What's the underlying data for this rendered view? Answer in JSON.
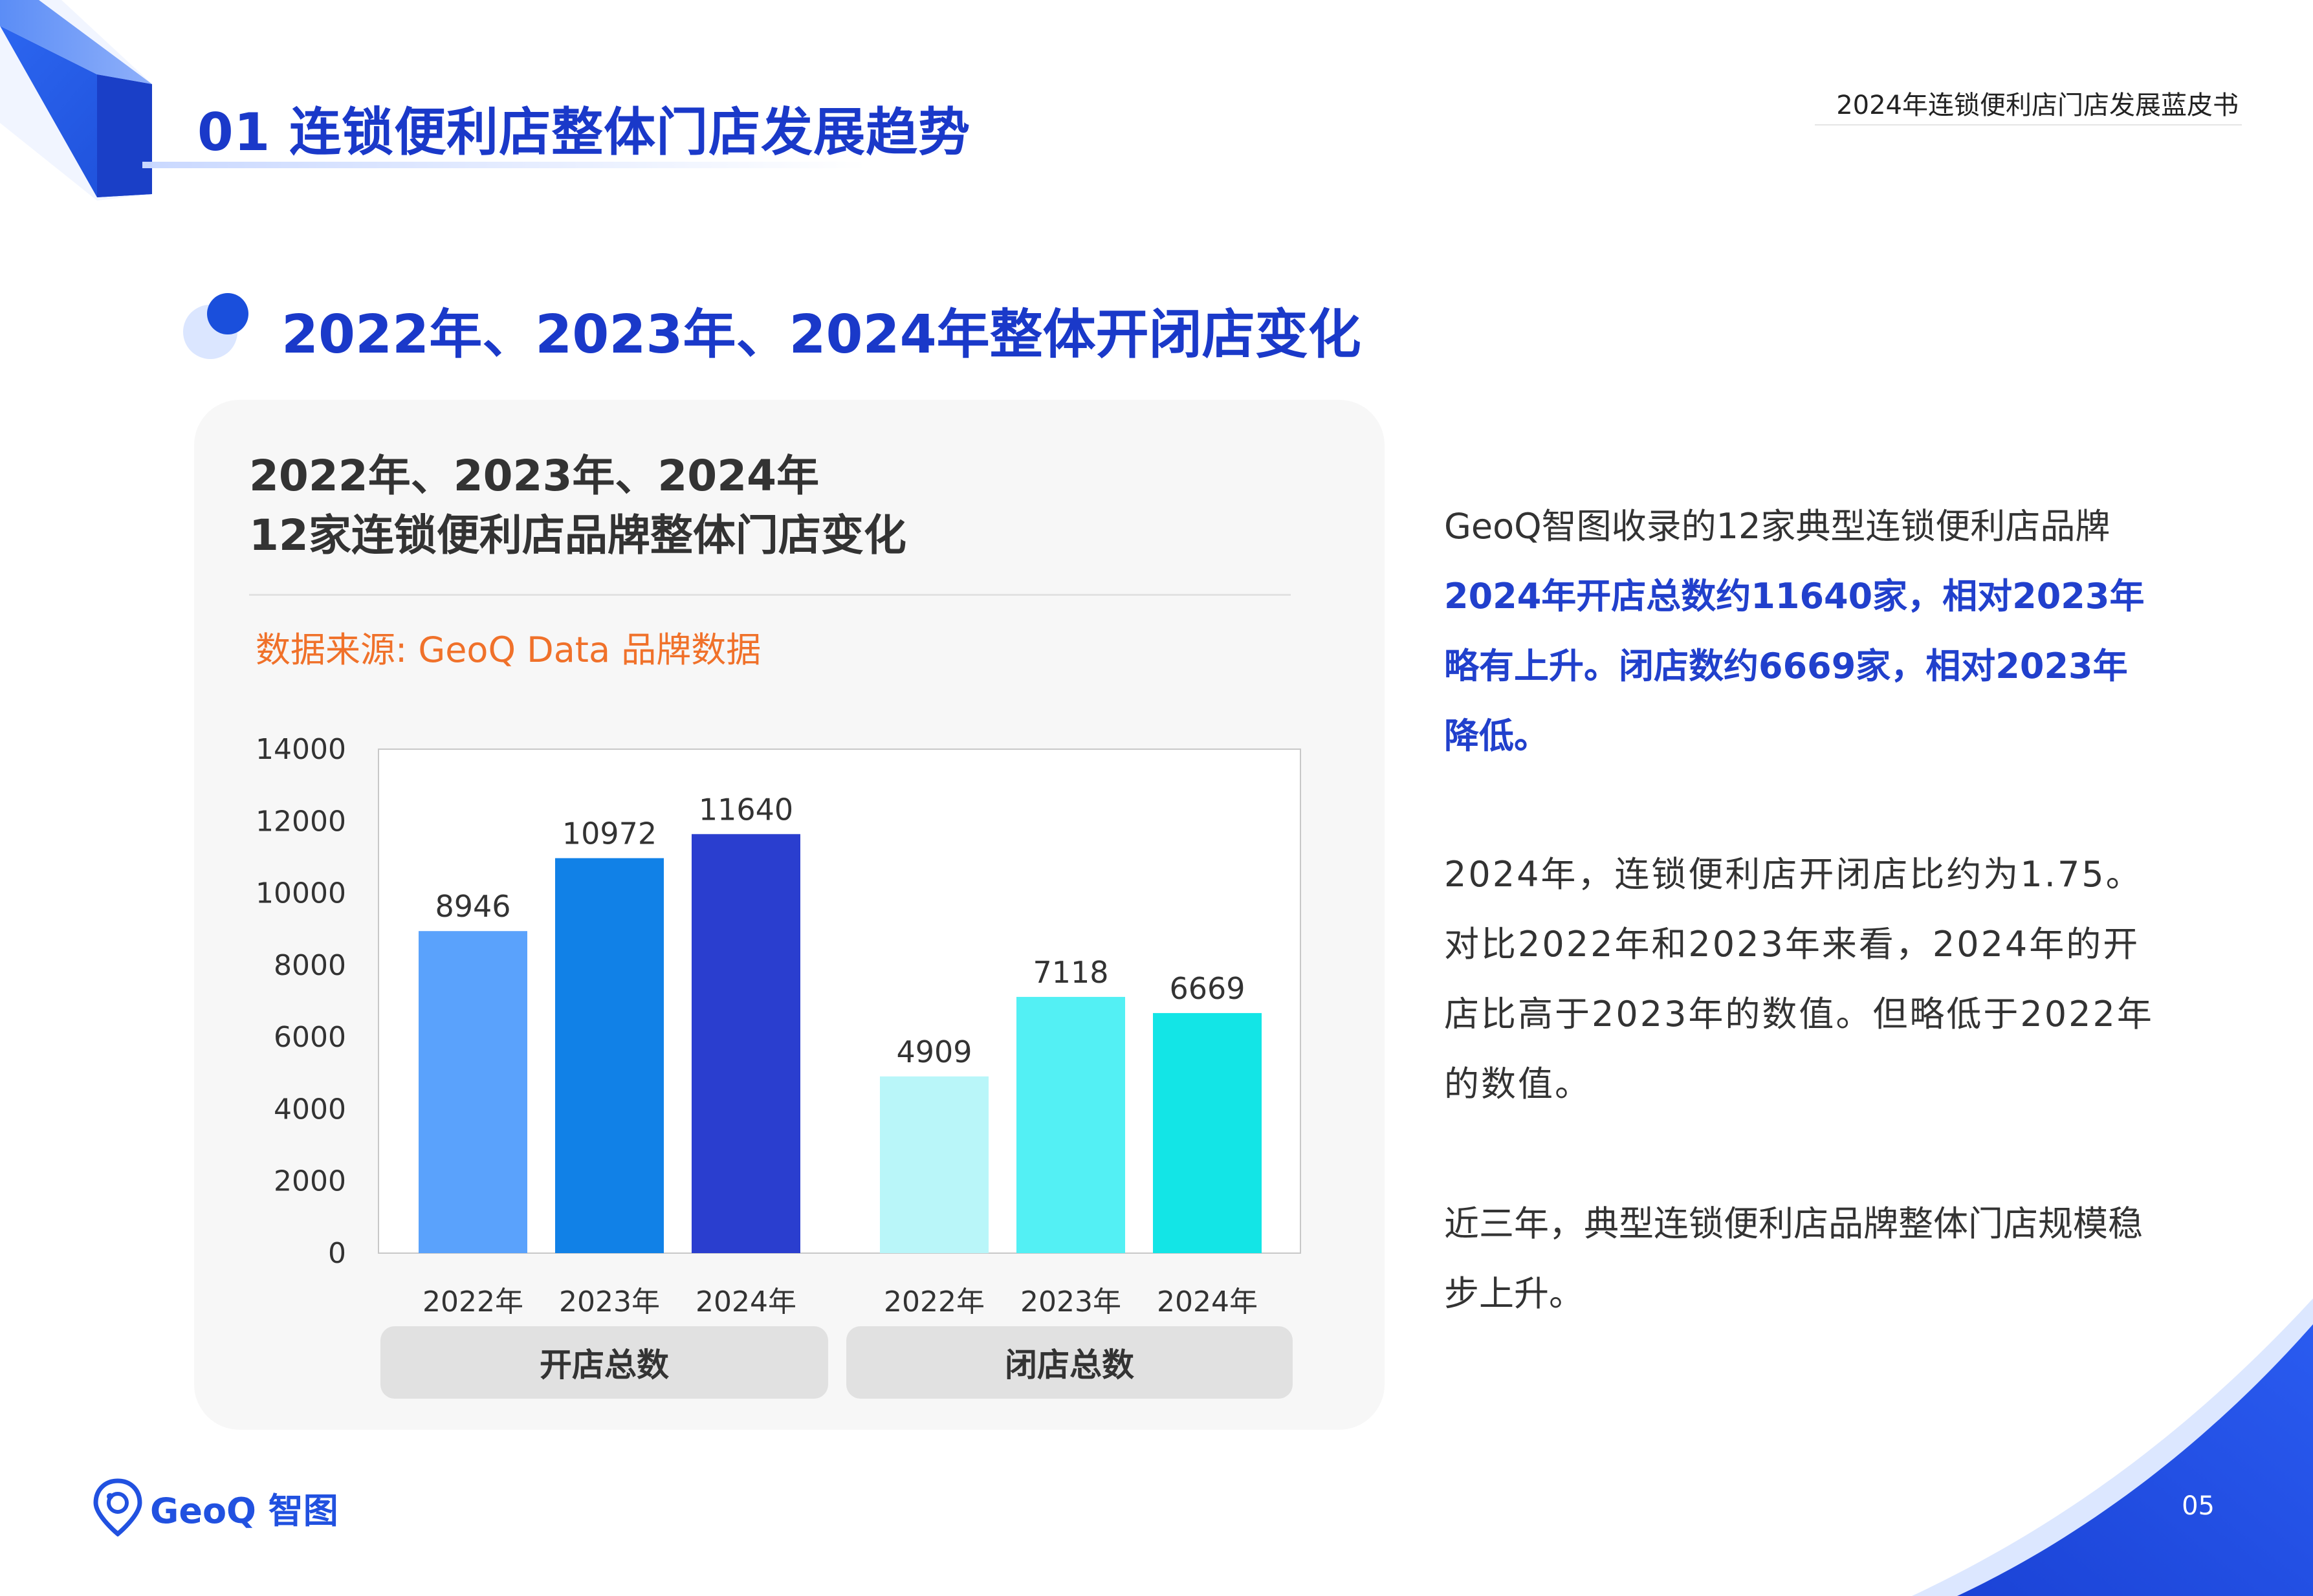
{
  "header": {
    "section_title": "01 连锁便利店整体门店发展趋势",
    "report_title": "2024年连锁便利店门店发展蓝皮书"
  },
  "subsection": {
    "title": "2022年、2023年、2024年整体开闭店变化"
  },
  "chart_card": {
    "title_line1": "2022年、2023年、2024年",
    "title_line2": "12家连锁便利店品牌整体门店变化",
    "source": "数据来源: GeoQ Data 品牌数据"
  },
  "chart_data": {
    "type": "bar",
    "title": "2022年、2023年、2024年 12家连锁便利店品牌整体门店变化",
    "xlabel": "",
    "ylabel": "",
    "ylim": [
      0,
      14000
    ],
    "yticks": [
      0,
      2000,
      4000,
      6000,
      8000,
      10000,
      12000,
      14000
    ],
    "groups": [
      {
        "name": "开店总数",
        "categories": [
          "2022年",
          "2023年",
          "2024年"
        ],
        "values": [
          8946,
          10972,
          11640
        ],
        "colors": [
          "#5aa2fc",
          "#1181e7",
          "#2a3ecf"
        ]
      },
      {
        "name": "闭店总数",
        "categories": [
          "2022年",
          "2023年",
          "2024年"
        ],
        "values": [
          4909,
          7118,
          6669
        ],
        "colors": [
          "#b9f6f9",
          "#53f0f4",
          "#13e5e6"
        ]
      }
    ],
    "data_labels": true,
    "grid": false
  },
  "text": {
    "p1_a": "GeoQ智图收录的12家典型连锁便利店品牌",
    "p1_b": "2024年开店总数约11640家，相对2023年略有上升。闭店数约6669家，相对2023年降低。",
    "p2": "2024年，连锁便利店开闭店比约为1.75。对比2022年和2023年来看，2024年的开店比高于2023年的数值。但略低于2022年的数值。",
    "p3": "近三年，典型连锁便利店品牌整体门店规模稳步上升。"
  },
  "footer": {
    "logo_text": "GeoQ 智图",
    "page_number": "05"
  },
  "colors": {
    "accent": "#1a39c9",
    "source": "#f0712a",
    "highlight": "#2140cc"
  }
}
